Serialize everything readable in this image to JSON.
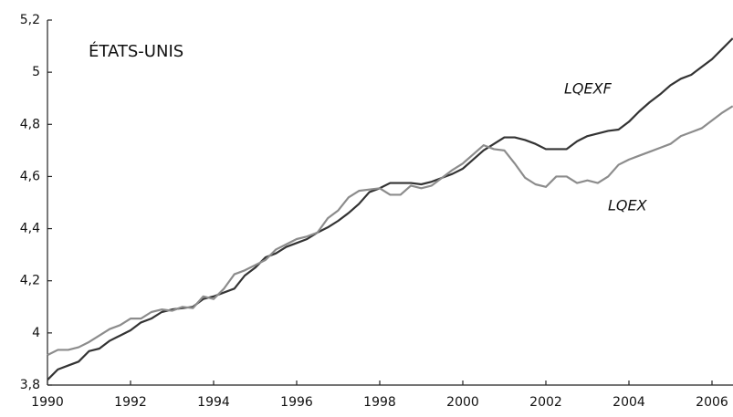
{
  "chart_data": {
    "type": "line",
    "title": "ÉTATS-UNIS",
    "x": [
      1990,
      1990.25,
      1990.5,
      1990.75,
      1991,
      1991.25,
      1991.5,
      1991.75,
      1992,
      1992.25,
      1992.5,
      1992.75,
      1993,
      1993.25,
      1993.5,
      1993.75,
      1994,
      1994.25,
      1994.5,
      1994.75,
      1995,
      1995.25,
      1995.5,
      1995.75,
      1996,
      1996.25,
      1996.5,
      1996.75,
      1997,
      1997.25,
      1997.5,
      1997.75,
      1998,
      1998.25,
      1998.5,
      1998.75,
      1999,
      1999.25,
      1999.5,
      1999.75,
      2000,
      2000.25,
      2000.5,
      2000.75,
      2001,
      2001.25,
      2001.5,
      2001.75,
      2002,
      2002.25,
      2002.5,
      2002.75,
      2003,
      2003.25,
      2003.5,
      2003.75,
      2004,
      2004.25,
      2004.5,
      2004.75,
      2005,
      2005.25,
      2005.5,
      2005.75,
      2006,
      2006.25,
      2006.5
    ],
    "series": [
      {
        "name": "LQEXF",
        "color": "#333333",
        "values": [
          3.82,
          3.86,
          3.875,
          3.89,
          3.93,
          3.94,
          3.97,
          3.99,
          4.01,
          4.04,
          4.055,
          4.08,
          4.09,
          4.095,
          4.1,
          4.13,
          4.14,
          4.155,
          4.17,
          4.22,
          4.25,
          4.29,
          4.305,
          4.33,
          4.345,
          4.36,
          4.385,
          4.405,
          4.43,
          4.46,
          4.495,
          4.54,
          4.555,
          4.575,
          4.575,
          4.575,
          4.57,
          4.58,
          4.595,
          4.61,
          4.63,
          4.665,
          4.7,
          4.725,
          4.75,
          4.75,
          4.74,
          4.725,
          4.705,
          4.705,
          4.705,
          4.735,
          4.755,
          4.765,
          4.775,
          4.78,
          4.81,
          4.85,
          4.885,
          4.915,
          4.95,
          4.975,
          4.99,
          5.02,
          5.05,
          5.09,
          5.13
        ]
      },
      {
        "name": "LQEX",
        "color": "#8c8c8c",
        "values": [
          3.915,
          3.935,
          3.935,
          3.945,
          3.965,
          3.99,
          4.015,
          4.03,
          4.055,
          4.055,
          4.08,
          4.09,
          4.085,
          4.1,
          4.095,
          4.14,
          4.13,
          4.17,
          4.225,
          4.24,
          4.26,
          4.28,
          4.32,
          4.34,
          4.36,
          4.37,
          4.385,
          4.44,
          4.47,
          4.52,
          4.545,
          4.55,
          4.555,
          4.53,
          4.53,
          4.565,
          4.555,
          4.565,
          4.595,
          4.625,
          4.65,
          4.685,
          4.72,
          4.705,
          4.7,
          4.65,
          4.595,
          4.57,
          4.56,
          4.6,
          4.6,
          4.575,
          4.585,
          4.575,
          4.6,
          4.645,
          4.665,
          4.68,
          4.695,
          4.71,
          4.725,
          4.755,
          4.77,
          4.785,
          4.815,
          4.845,
          4.87
        ]
      }
    ],
    "xlim": [
      1990,
      2006.5
    ],
    "xticks": [
      1990,
      1992,
      1994,
      1996,
      1998,
      2000,
      2002,
      2004,
      2006
    ],
    "ylim": [
      3.8,
      5.2
    ],
    "yticks": [
      {
        "value": 3.8,
        "label": "3,8"
      },
      4,
      {
        "value": 4.2,
        "label": "4,2"
      },
      {
        "value": 4.4,
        "label": "4,4"
      },
      {
        "value": 4.6,
        "label": "4,6"
      },
      {
        "value": 4.8,
        "label": "4,8"
      },
      5,
      {
        "value": 5.2,
        "label": "5,2"
      }
    ],
    "grid": false
  }
}
